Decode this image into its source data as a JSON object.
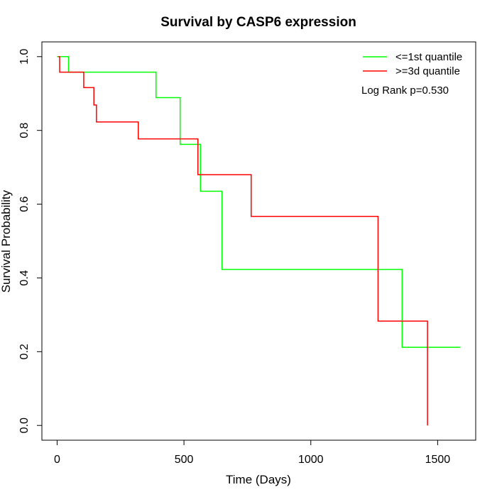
{
  "chart_data": {
    "type": "line",
    "title": "Survival by CASP6 expression",
    "xlabel": "Time (Days)",
    "ylabel": "Survival Probability",
    "xlim": [
      -60,
      1650
    ],
    "ylim": [
      -0.04,
      1.04
    ],
    "x_ticks": [
      0,
      500,
      1000,
      1500
    ],
    "y_ticks": [
      0.0,
      0.2,
      0.4,
      0.6,
      0.8,
      1.0
    ],
    "x_tick_labels": [
      "0",
      "500",
      "1000",
      "1500"
    ],
    "y_tick_labels": [
      "0.0",
      "0.2",
      "0.4",
      "0.6",
      "0.8",
      "1.0"
    ],
    "grid": false,
    "legend_position": "top-right",
    "annotation": "Log Rank p=0.530",
    "series": [
      {
        "name": "<=1st quantile",
        "color": "#00ff00",
        "steps": [
          [
            0,
            1.0
          ],
          [
            45,
            0.958
          ],
          [
            390,
            0.889
          ],
          [
            485,
            0.762
          ],
          [
            565,
            0.635
          ],
          [
            650,
            0.423
          ],
          [
            1360,
            0.212
          ],
          [
            1590,
            0.212
          ]
        ]
      },
      {
        "name": ">=3d quantile",
        "color": "#ff0000",
        "steps": [
          [
            5,
            1.0
          ],
          [
            10,
            0.958
          ],
          [
            105,
            0.916
          ],
          [
            145,
            0.869
          ],
          [
            155,
            0.823
          ],
          [
            320,
            0.777
          ],
          [
            555,
            0.68
          ],
          [
            765,
            0.567
          ],
          [
            1265,
            0.283
          ],
          [
            1460,
            0.0
          ]
        ]
      }
    ]
  }
}
